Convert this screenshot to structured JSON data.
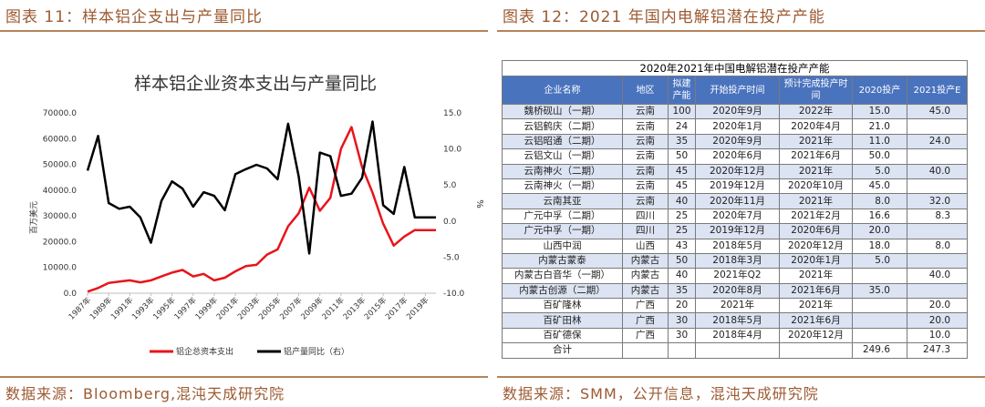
{
  "left": {
    "figure_title": "图表 11：样本铝企支出与产量同比",
    "source": "数据来源：Bloomberg,混沌天成研究院"
  },
  "right": {
    "figure_title": "图表 12：2021 年国内电解铝潜在投产产能",
    "source": "数据来源：SMM，公开信息，混沌天成研究院"
  },
  "chart_data": {
    "type": "line",
    "title": "样本铝企业资本支出与产量同比",
    "ylabel": "百万美元",
    "y2label": "%",
    "ylim": [
      0,
      70000
    ],
    "y2lim": [
      -10,
      15
    ],
    "yticks": [
      "70000.0",
      "60000.0",
      "50000.0",
      "40000.0",
      "30000.0",
      "20000.0",
      "10000.0",
      "0.0"
    ],
    "y2ticks": [
      "15.0",
      "10.0",
      "5.0",
      "0.0",
      "-5.0",
      "-10.0"
    ],
    "xticks": [
      "1987年",
      "1989年",
      "1991年",
      "1993年",
      "1995年",
      "1997年",
      "1999年",
      "2001年",
      "2003年",
      "2005年",
      "2007年",
      "2009年",
      "2011年",
      "2013年",
      "2015年",
      "2017年",
      "2019年"
    ],
    "x": [
      1987,
      1988,
      1989,
      1990,
      1991,
      1992,
      1993,
      1994,
      1995,
      1996,
      1997,
      1998,
      1999,
      2000,
      2001,
      2002,
      2003,
      2004,
      2005,
      2006,
      2007,
      2008,
      2009,
      2010,
      2011,
      2012,
      2013,
      2014,
      2015,
      2016,
      2017,
      2018,
      2019,
      2020
    ],
    "legend_position": "bottom",
    "series": [
      {
        "name": "铝企总资本支出",
        "axis": "left",
        "color": "#e8141b",
        "values": [
          600,
          2000,
          4000,
          4500,
          5000,
          4200,
          5000,
          6500,
          8000,
          9000,
          6500,
          7500,
          5000,
          6000,
          8500,
          10500,
          11000,
          15000,
          17000,
          26000,
          31000,
          41000,
          32000,
          37000,
          56000,
          64500,
          49000,
          39000,
          27000,
          18500,
          22000,
          24500,
          24500,
          24500
        ]
      },
      {
        "name": "铝产量同比（右）",
        "axis": "right",
        "color": "#000000",
        "values": [
          7.0,
          11.8,
          2.5,
          1.7,
          2.0,
          0.5,
          -3.0,
          2.8,
          5.5,
          4.5,
          2.0,
          4.0,
          3.5,
          1.5,
          6.5,
          7.2,
          7.8,
          7.3,
          5.8,
          13.5,
          6.2,
          -4.5,
          9.5,
          9.0,
          3.5,
          3.8,
          6.0,
          13.8,
          2.2,
          1.0,
          7.5,
          0.5,
          0.5,
          0.5
        ]
      }
    ]
  },
  "table": {
    "caption": "2020年2021年中国电解铝潜在投产产能",
    "headers": [
      "企业名称",
      "地区",
      "拟建产能",
      "开始投产时间",
      "预计完成投产时间",
      "2020投产",
      "2021投产E"
    ],
    "rows": [
      [
        "魏桥砚山（一期）",
        "云南",
        "100",
        "2020年9月",
        "2022年",
        "15.0",
        "45.0"
      ],
      [
        "云铝鹤庆（二期）",
        "云南",
        "24",
        "2020年1月",
        "2020年4月",
        "21.0",
        ""
      ],
      [
        "云铝昭通（二期）",
        "云南",
        "35",
        "2020年9月",
        "2021年",
        "11.0",
        "24.0"
      ],
      [
        "云铝文山（一期）",
        "云南",
        "50",
        "2020年6月",
        "2021年6月",
        "50.0",
        ""
      ],
      [
        "云南神火（二期）",
        "云南",
        "45",
        "2020年12月",
        "2021年",
        "5.0",
        "40.0"
      ],
      [
        "云南神火（一期）",
        "云南",
        "45",
        "2019年12月",
        "2020年10月",
        "45.0",
        ""
      ],
      [
        "云南其亚",
        "云南",
        "40",
        "2020年11月",
        "2021年",
        "8.0",
        "32.0"
      ],
      [
        "广元中孚（二期）",
        "四川",
        "25",
        "2020年7月",
        "2021年2月",
        "16.6",
        "8.3"
      ],
      [
        "广元中孚（一期）",
        "四川",
        "25",
        "2019年12月",
        "2020年6月",
        "20.0",
        ""
      ],
      [
        "山西中润",
        "山西",
        "43",
        "2018年5月",
        "2020年12月",
        "18.0",
        "8.0"
      ],
      [
        "内蒙古蒙泰",
        "内蒙古",
        "50",
        "2018年3月",
        "2020年1月",
        "5.0",
        ""
      ],
      [
        "内蒙古白音华（一期）",
        "内蒙古",
        "40",
        "2021年Q2",
        "2021年",
        "",
        "40.0"
      ],
      [
        "内蒙古创源（二期）",
        "内蒙古",
        "35",
        "2020年8月",
        "2021年6月",
        "35.0",
        ""
      ],
      [
        "百矿隆林",
        "广西",
        "20",
        "2021年",
        "2021年",
        "",
        "20.0"
      ],
      [
        "百矿田林",
        "广西",
        "30",
        "2018年5月",
        "2021年6月",
        "",
        "20.0"
      ],
      [
        "百矿德保",
        "广西",
        "30",
        "2018年4月",
        "2020年12月",
        "",
        "10.0"
      ]
    ],
    "total": [
      "合计",
      "",
      "",
      "",
      "",
      "249.6",
      "247.3"
    ]
  }
}
